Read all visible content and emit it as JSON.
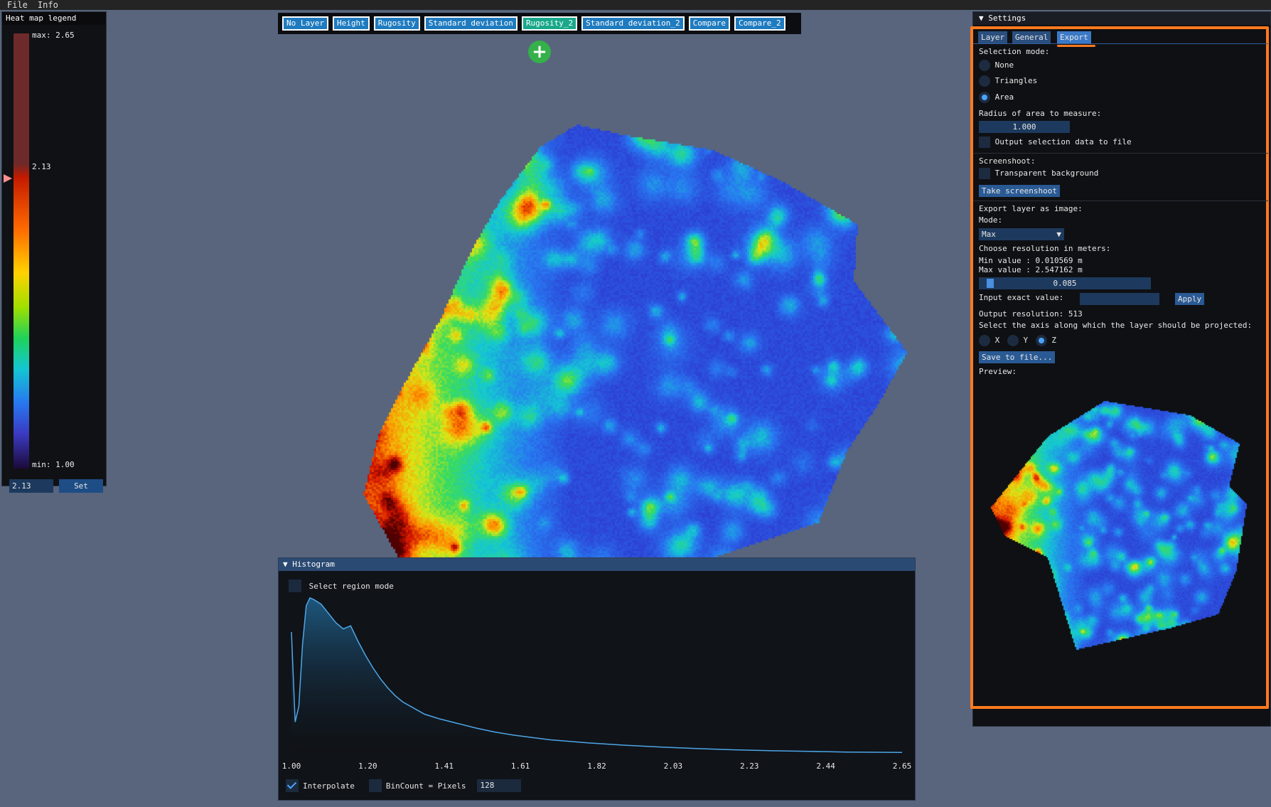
{
  "menu": {
    "file": "File",
    "info": "Info"
  },
  "legend": {
    "title": "Heat map legend",
    "max_label": "max: 2.65",
    "current_label": "2.13",
    "min_label": "min: 1.00",
    "value_field": "2.13",
    "set_button": "Set"
  },
  "layers": {
    "buttons": [
      "No Layer",
      "Height",
      "Rugosity",
      "Standard deviation",
      "Rugosity_2",
      "Standard deviation_2",
      "Compare",
      "Compare_2"
    ],
    "active": "Rugosity_2",
    "add_icon": "+"
  },
  "histogram": {
    "title": "Histogram",
    "select_region_mode": "Select region mode",
    "interpolate": "Interpolate",
    "interpolate_checked": true,
    "bincount_label": "BinCount = Pixels",
    "bincount_checked": false,
    "bin_value": "128"
  },
  "chart_data": {
    "type": "area",
    "x_ticks": [
      "1.00",
      "1.20",
      "1.41",
      "1.61",
      "1.82",
      "2.03",
      "2.23",
      "2.44",
      "2.65"
    ],
    "xlim": [
      1.0,
      2.65
    ],
    "x": [
      1.0,
      1.01,
      1.02,
      1.03,
      1.04,
      1.05,
      1.06,
      1.08,
      1.1,
      1.12,
      1.14,
      1.16,
      1.18,
      1.2,
      1.22,
      1.24,
      1.26,
      1.28,
      1.3,
      1.33,
      1.36,
      1.4,
      1.45,
      1.5,
      1.55,
      1.6,
      1.65,
      1.7,
      1.8,
      1.9,
      2.0,
      2.1,
      2.2,
      2.3,
      2.4,
      2.5,
      2.65
    ],
    "y": [
      0.78,
      0.2,
      0.3,
      0.7,
      0.95,
      1.0,
      0.99,
      0.96,
      0.9,
      0.84,
      0.8,
      0.82,
      0.72,
      0.63,
      0.55,
      0.48,
      0.42,
      0.37,
      0.33,
      0.29,
      0.25,
      0.22,
      0.19,
      0.16,
      0.135,
      0.115,
      0.1,
      0.085,
      0.065,
      0.05,
      0.038,
      0.028,
      0.02,
      0.014,
      0.01,
      0.006,
      0.003
    ],
    "ylim": [
      0,
      1.05
    ],
    "line_color": "#4da6e8",
    "fill_color": "#1f5f8a",
    "grid": false
  },
  "settings": {
    "title": "Settings",
    "tabs": [
      "Layer",
      "General",
      "Export"
    ],
    "active_tab": "Export",
    "selection_mode_label": "Selection mode:",
    "selection_modes": [
      "None",
      "Triangles",
      "Area"
    ],
    "selection_mode_selected": "Area",
    "radius_label": "Radius of area to measure:",
    "radius_value": "1.000",
    "output_selection_label": "Output selection data to file",
    "screenshot_label": "Screenshoot:",
    "transparent_bg_label": "Transparent background",
    "take_screenshot_button": "Take screenshoot",
    "export_layer_label": "Export layer as image:",
    "mode_label": "Mode:",
    "mode_value": "Max",
    "choose_resolution_label": "Choose resolution in meters:",
    "min_value_label": "Min value : 0.010569 m",
    "max_value_label": "Max value : 2.547162 m",
    "resolution_slider_value": "0.085",
    "resolution_slider_fraction": 0.03,
    "input_exact_label": "Input exact value:",
    "apply_button": "Apply",
    "output_resolution_label": "Output resolution: 513",
    "axis_label": "Select the axis along which the layer should be projected:",
    "axes": [
      "X",
      "Y",
      "Z"
    ],
    "axis_selected": "Z",
    "save_button": "Save to file...",
    "preview_label": "Preview:"
  },
  "colors": {
    "background": "#58657d",
    "accent_orange": "#ff7a1f",
    "button_blue": "#1f7bbf",
    "active_teal": "#19a88a",
    "add_green": "#35b04a"
  }
}
